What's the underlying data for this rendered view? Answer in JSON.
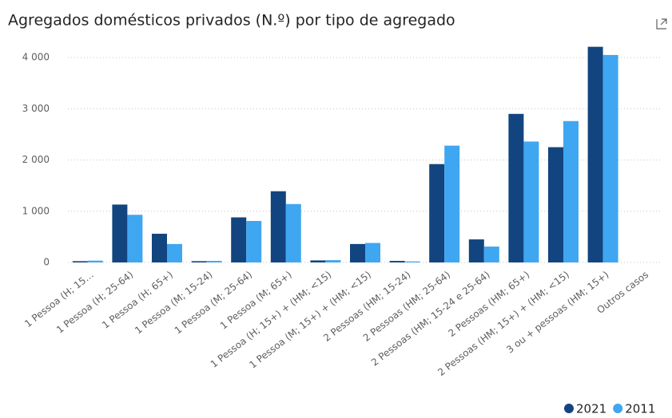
{
  "chart_data": {
    "type": "bar",
    "title": "Agregados domésticos privados (N.º) por tipo de agregado",
    "categories": [
      "1 Pessoa (H; 15…",
      "1 Pessoa (H; 25-64)",
      "1 Pessoa (H; 65+)",
      "1 Pessoa (M; 15-24)",
      "1 Pessoa (M; 25-64)",
      "1 Pessoa (M; 65+)",
      "1 Pessoa (H; 15+) + (HM; <15)",
      "1 Pessoa (M; 15+) + (HM; <15)",
      "2 Pessoas (HM; 15-24)",
      "2 Pessoas (HM; 25-64)",
      "2 Pessoas (HM; 15-24 e 25-64)",
      "2 Pessoas (HM; 65+)",
      "2 Pessoas (HM; 15+) + (HM; <15)",
      "3 ou + pessoas (HM; 15+)",
      "Outros casos"
    ],
    "series": [
      {
        "name": "2021",
        "color": "#12457f",
        "values": [
          25,
          1130,
          560,
          25,
          880,
          1390,
          40,
          360,
          30,
          1920,
          450,
          2900,
          2250,
          4210,
          0
        ]
      },
      {
        "name": "2011",
        "color": "#3fa6f2",
        "values": [
          35,
          930,
          360,
          30,
          810,
          1140,
          45,
          380,
          20,
          2280,
          310,
          2360,
          2760,
          4050,
          0
        ]
      }
    ],
    "ylim": [
      0,
      4220
    ],
    "yticks": [
      0,
      {
        "value": 1000,
        "label": "1 000"
      },
      {
        "value": 2000,
        "label": "2 000"
      },
      {
        "value": 3000,
        "label": "3 000"
      },
      {
        "value": 4000,
        "label": "4 000"
      }
    ],
    "grid": true,
    "legend": "bottom-right"
  }
}
